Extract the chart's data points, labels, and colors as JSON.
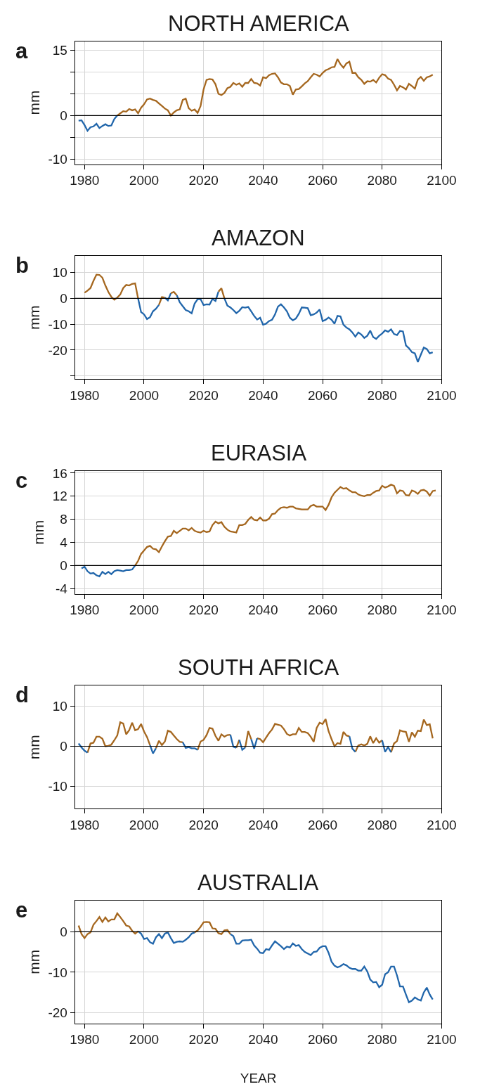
{
  "chart_data": [
    {
      "type": "line",
      "title": "NORTH AMERICA",
      "ylabel": "mm",
      "annotations": [
        "a"
      ],
      "grid": true,
      "xlim": [
        1976.8,
        2100
      ],
      "xticks": [
        1980,
        2000,
        2020,
        2040,
        2060,
        2080,
        2100
      ],
      "ylim": [
        -11.2,
        17.1
      ],
      "yticks": [
        -10,
        {
          "value": -5,
          "label": null
        },
        0,
        {
          "value": 5,
          "label": null
        },
        {
          "value": 10,
          "label": null
        },
        15
      ],
      "ref_lines": [
        {
          "axis": "y",
          "value": 0,
          "color": "#000000"
        }
      ],
      "series": [
        {
          "color": "#a5671f",
          "x": [
            1991,
            1992,
            1993,
            1994,
            1995,
            1996,
            1997,
            1998,
            1999,
            2000,
            2001,
            2002,
            2003,
            2004,
            2005,
            2006,
            2007,
            2008,
            2009,
            2010,
            2011,
            2012,
            2013,
            2014,
            2015,
            2016,
            2017,
            2018,
            2019,
            2020,
            2021,
            2022,
            2023,
            2024,
            2025,
            2026,
            2027,
            2028,
            2029,
            2030,
            2031,
            2032,
            2033,
            2034,
            2035,
            2036,
            2037,
            2038,
            2039,
            2040,
            2041,
            2042,
            2043,
            2044,
            2045,
            2046,
            2047,
            2048,
            2049,
            2050,
            2051,
            2052,
            2053,
            2054,
            2055,
            2056,
            2057,
            2058,
            2059,
            2060,
            2061,
            2062,
            2063,
            2064,
            2065,
            2066,
            2067,
            2068,
            2069,
            2070,
            2071,
            2072,
            2073,
            2074,
            2075,
            2076,
            2077,
            2078,
            2079,
            2080,
            2081,
            2082,
            2083,
            2084,
            2085,
            2086,
            2087,
            2088,
            2089,
            2090,
            2091,
            2092,
            2093,
            2094,
            2095,
            2096,
            2097
          ],
          "values": [
            0,
            0.5,
            1.0,
            0.9,
            1.5,
            1.2,
            1.4,
            0.5,
            1.8,
            2.6,
            3.7,
            3.9,
            3.6,
            3.4,
            2.8,
            2.2,
            1.6,
            1.2,
            0,
            0.7,
            1.2,
            1.4,
            3.6,
            3.9,
            1.7,
            1.1,
            1.4,
            0.6,
            2.2,
            6.0,
            8.2,
            8.4,
            8.3,
            7.2,
            5.0,
            4.7,
            5.2,
            6.3,
            6.6,
            7.5,
            7.1,
            7.4,
            6.6,
            7.5,
            7.5,
            8.4,
            7.5,
            7.4,
            6.9,
            8.8,
            8.6,
            9.3,
            9.6,
            9.7,
            8.8,
            7.6,
            7.2,
            7.2,
            6.8,
            4.8,
            6.0,
            6.1,
            6.7,
            7.4,
            7.9,
            8.8,
            9.6,
            9.4,
            9.0,
            9.8,
            10.4,
            10.7,
            11.1,
            11.2,
            13.0,
            11.8,
            11.0,
            12.0,
            12.4,
            9.8,
            9.8,
            8.8,
            8.2,
            7.3,
            7.9,
            7.8,
            8.2,
            7.6,
            8.7,
            9.5,
            9.3,
            8.5,
            8.2,
            7.1,
            5.8,
            6.8,
            6.5,
            6.0,
            7.3,
            6.8,
            6.2,
            8.3,
            8.9,
            8.0,
            8.8,
            9.0,
            9.4
          ]
        },
        {
          "color": "#2166ab",
          "x": [
            1978,
            1979,
            1980,
            1981,
            1982,
            1983,
            1984,
            1985,
            1986,
            1987,
            1988,
            1989,
            1990,
            1991
          ],
          "values": [
            -1.2,
            -1.1,
            -2.2,
            -3.5,
            -2.7,
            -2.5,
            -1.9,
            -2.9,
            -2.4,
            -2.0,
            -2.4,
            -2.3,
            -0.8,
            0
          ]
        }
      ]
    },
    {
      "type": "line",
      "title": "AMAZON",
      "ylabel": "mm",
      "annotations": [
        "b"
      ],
      "grid": true,
      "xlim": [
        1976.8,
        2100
      ],
      "xticks": [
        1980,
        2000,
        2020,
        2040,
        2060,
        2080,
        2100
      ],
      "ylim": [
        -31.2,
        16.4
      ],
      "yticks": [
        {
          "value": -30,
          "label": null
        },
        -20,
        -10,
        0,
        10
      ],
      "ref_lines": [
        {
          "axis": "y",
          "value": 0,
          "color": "#000000"
        }
      ],
      "series": [
        {
          "color": "#2166ab",
          "x": [
            1998,
            1999,
            2000,
            2001,
            2002,
            2003,
            2004,
            2005,
            2006,
            2007,
            2008,
            2009,
            2010,
            2011,
            2012,
            2013,
            2014,
            2015,
            2016,
            2017,
            2018,
            2019,
            2020,
            2021,
            2022,
            2023,
            2024,
            2025,
            2026,
            2027,
            2028,
            2029,
            2030,
            2031,
            2032,
            2033,
            2034,
            2035,
            2036,
            2037,
            2038,
            2039,
            2040,
            2041,
            2042,
            2043,
            2044,
            2045,
            2046,
            2047,
            2048,
            2049,
            2050,
            2051,
            2052,
            2053,
            2054,
            2055,
            2056,
            2057,
            2058,
            2059,
            2060,
            2061,
            2062,
            2063,
            2064,
            2065,
            2066,
            2067,
            2068,
            2069,
            2070,
            2071,
            2072,
            2073,
            2074,
            2075,
            2076,
            2077,
            2078,
            2079,
            2080,
            2081,
            2082,
            2083,
            2084,
            2085,
            2086,
            2087,
            2088,
            2089,
            2090,
            2091,
            2092,
            2093,
            2094,
            2095,
            2096,
            2097
          ],
          "values": [
            0,
            -5.3,
            -6.2,
            -8.0,
            -7.3,
            -5.0,
            -4.0,
            -2.5,
            null,
            0.3,
            -0.8,
            2.0,
            null,
            1.2,
            -1.5,
            -3.0,
            -4.5,
            -5.0,
            -5.8,
            -2.0,
            -0.3,
            -0.3,
            -2.6,
            -2.3,
            -2.4,
            -0.2,
            -1.0,
            2.6,
            null,
            0,
            -2.8,
            -3.5,
            -4.5,
            -5.7,
            -4.8,
            -3.4,
            -3.6,
            -3.3,
            -5.0,
            -6.8,
            -8.2,
            -7.5,
            -10.2,
            -9.8,
            -8.8,
            -8.3,
            -6.2,
            -3.2,
            -2.3,
            -3.5,
            -5.0,
            -7.5,
            -8.5,
            -7.8,
            -6.0,
            -3.5,
            -3.6,
            -3.8,
            -6.5,
            -6.2,
            -5.5,
            -4.3,
            -8.8,
            -8.3,
            -7.4,
            -8.3,
            -9.8,
            -6.8,
            -7.0,
            -10.2,
            -11.3,
            -12.0,
            -13.2,
            -14.8,
            -13.2,
            -14.0,
            -15.3,
            -14.5,
            -12.5,
            -15.0,
            -15.7,
            -14.5,
            -13.6,
            -12.4,
            -12.9,
            -12.0,
            -13.8,
            -14.2,
            -12.6,
            -12.8,
            -18.2,
            -19.3,
            -20.8,
            -21.3,
            -24.6,
            -21.8,
            -19.0,
            -19.6,
            -21.3,
            -20.9
          ]
        },
        {
          "color": "#a5671f",
          "x": [
            1980,
            1981,
            1982,
            1983,
            1984,
            1985,
            1986,
            1987,
            1988,
            1989,
            1990,
            1991,
            1992,
            1993,
            1994,
            1995,
            1996,
            1997,
            1998,
            2002,
            2005,
            2006,
            2007,
            2008,
            2009,
            2010,
            2011,
            2018,
            2025,
            2026,
            2027
          ],
          "values": [
            2.2,
            3.0,
            4.0,
            6.8,
            9.2,
            9.1,
            8.0,
            5.0,
            2.5,
            0.6,
            -0.5,
            0.3,
            1.5,
            4.0,
            5.2,
            5.0,
            5.6,
            5.8,
            0,
            null,
            -2.5,
            0.5,
            0.3,
            null,
            2.0,
            2.5,
            1.2,
            null,
            2.6,
            3.9,
            0
          ]
        }
      ]
    },
    {
      "type": "line",
      "title": "EURASIA",
      "ylabel": "mm",
      "annotations": [
        "c"
      ],
      "grid": true,
      "xlim": [
        1976.8,
        2100
      ],
      "xticks": [
        1980,
        2000,
        2020,
        2040,
        2060,
        2080,
        2100
      ],
      "ylim": [
        -4.9,
        16.4
      ],
      "yticks": [
        -4,
        0,
        4,
        8,
        12,
        16
      ],
      "ref_lines": [
        {
          "axis": "y",
          "value": 0,
          "color": "#000000"
        }
      ],
      "series": [
        {
          "color": "#a5671f",
          "x": [
            1997,
            1998,
            1999,
            2000,
            2001,
            2002,
            2003,
            2004,
            2005,
            2006,
            2007,
            2008,
            2009,
            2010,
            2011,
            2012,
            2013,
            2014,
            2015,
            2016,
            2017,
            2018,
            2019,
            2020,
            2021,
            2022,
            2023,
            2024,
            2025,
            2026,
            2027,
            2028,
            2029,
            2030,
            2031,
            2032,
            2033,
            2034,
            2035,
            2036,
            2037,
            2038,
            2039,
            2040,
            2041,
            2042,
            2043,
            2044,
            2045,
            2046,
            2047,
            2048,
            2049,
            2050,
            2051,
            2052,
            2053,
            2054,
            2055,
            2056,
            2057,
            2058,
            2059,
            2060,
            2061,
            2062,
            2063,
            2064,
            2065,
            2066,
            2067,
            2068,
            2069,
            2070,
            2071,
            2072,
            2073,
            2074,
            2075,
            2076,
            2077,
            2078,
            2079,
            2080,
            2081,
            2082,
            2083,
            2084,
            2085,
            2086,
            2087,
            2088,
            2089,
            2090,
            2091,
            2092,
            2093,
            2094,
            2095,
            2096,
            2097,
            2098
          ],
          "values": [
            0,
            0.8,
            2.0,
            2.6,
            3.2,
            3.4,
            2.9,
            2.8,
            2.3,
            3.3,
            4.2,
            5.0,
            5.1,
            6.0,
            5.6,
            6.0,
            6.4,
            6.4,
            6.1,
            6.5,
            6.0,
            5.8,
            5.7,
            6.0,
            5.8,
            5.9,
            7.0,
            7.6,
            7.3,
            7.5,
            6.7,
            6.2,
            5.9,
            5.8,
            5.7,
            7.0,
            7.0,
            7.2,
            7.9,
            8.4,
            7.9,
            7.8,
            8.3,
            7.8,
            7.8,
            8.1,
            8.9,
            9.0,
            9.6,
            10.0,
            10.1,
            10.0,
            10.2,
            10.2,
            9.9,
            9.8,
            9.7,
            9.7,
            9.7,
            10.3,
            10.5,
            10.2,
            10.2,
            10.2,
            9.6,
            10.5,
            11.8,
            12.6,
            13.1,
            13.6,
            13.3,
            13.4,
            13.0,
            12.7,
            12.7,
            12.3,
            12.1,
            12.0,
            12.2,
            12.2,
            12.6,
            12.9,
            13.0,
            13.8,
            13.5,
            13.7,
            14.0,
            13.8,
            12.5,
            13.0,
            12.9,
            12.2,
            12.1,
            13.0,
            12.8,
            12.4,
            13.0,
            13.1,
            12.8,
            12.1,
            12.9,
            13.0
          ]
        },
        {
          "color": "#2166ab",
          "x": [
            1979,
            1980,
            1981,
            1982,
            1983,
            1984,
            1985,
            1986,
            1987,
            1988,
            1989,
            1990,
            1991,
            1992,
            1993,
            1994,
            1995,
            1996,
            1997
          ],
          "values": [
            -0.5,
            -0.2,
            -1.0,
            -1.4,
            -1.3,
            -1.7,
            -1.9,
            -1.1,
            -1.5,
            -1.1,
            -1.5,
            -1.0,
            -0.8,
            -0.9,
            -1.0,
            -0.8,
            -0.8,
            -0.7,
            0
          ]
        }
      ]
    },
    {
      "type": "line",
      "title": "SOUTH AFRICA",
      "ylabel": "mm",
      "annotations": [
        "d"
      ],
      "grid": true,
      "xlim": [
        1976.8,
        2100
      ],
      "xticks": [
        1980,
        2000,
        2020,
        2040,
        2060,
        2080,
        2100
      ],
      "ylim": [
        -15.6,
        15.2
      ],
      "yticks": [
        -10,
        0,
        10
      ],
      "ref_lines": [
        {
          "axis": "y",
          "value": 0,
          "color": "#000000"
        }
      ],
      "series": [
        {
          "color": "#a5671f",
          "x": [
            1981,
            1982,
            1983,
            1984,
            1985,
            1986,
            1987,
            1988,
            1989,
            1990,
            1991,
            1992,
            1993,
            1994,
            1995,
            1996,
            1997,
            1998,
            1999,
            2000,
            2001,
            2002,
            2003,
            2004,
            2005,
            2006,
            2007,
            2008,
            2009,
            2010,
            2011,
            2012,
            2013,
            2014,
            2015,
            2016,
            2017,
            2018,
            2019,
            2020,
            2021,
            2022,
            2023,
            2024,
            2025,
            2026,
            2027,
            2028,
            2029,
            2030,
            2031,
            2032,
            2033,
            2034,
            2035,
            2036,
            2037,
            2038,
            2039,
            2040,
            2041,
            2042,
            2043,
            2044,
            2045,
            2046,
            2047,
            2048,
            2049,
            2050,
            2051,
            2052,
            2053,
            2054,
            2055,
            2056,
            2057,
            2058,
            2059,
            2060,
            2061,
            2062,
            2063,
            2064,
            2065,
            2066,
            2067,
            2068,
            2069,
            2070,
            2071,
            2072,
            2073,
            2074,
            2075,
            2076,
            2077,
            2078,
            2079,
            2080,
            2081,
            2082,
            2083,
            2084,
            2085,
            2086,
            2087,
            2088,
            2089,
            2090,
            2091,
            2092,
            2093,
            2094,
            2095,
            2096,
            2097
          ],
          "values": [
            -1.6,
            0.7,
            0.9,
            2.4,
            2.4,
            1.9,
            0.0,
            0.1,
            0.4,
            1.5,
            2.7,
            6.0,
            5.7,
            3.0,
            4.0,
            5.9,
            4.0,
            4.3,
            5.6,
            3.7,
            2.3,
            0.3,
            null,
            -0.5,
            1.4,
            0.3,
            1.2,
            3.9,
            3.6,
            2.7,
            1.8,
            1.1,
            1.0,
            null,
            null,
            null,
            null,
            -0.9,
            1.2,
            1.6,
            2.8,
            4.6,
            4.4,
            2.6,
            1.4,
            3.0,
            2.4,
            2.8,
            2.9,
            null,
            -0.4,
            1.6,
            null,
            -0.3,
            3.8,
            1.8,
            null,
            2.0,
            1.8,
            1.0,
            2.2,
            3.3,
            4.2,
            5.6,
            5.4,
            5.2,
            4.3,
            3.1,
            2.7,
            3.0,
            3.0,
            4.6,
            3.6,
            3.6,
            3.3,
            2.4,
            1.1,
            4.6,
            5.9,
            5.6,
            6.8,
            3.8,
            1.8,
            0.0,
            0.8,
            0.6,
            3.6,
            2.7,
            2.5,
            null,
            -1.4,
            0.2,
            0.5,
            0.2,
            0.6,
            2.5,
            0.8,
            2.0,
            0.9,
            1.5,
            null,
            null,
            -1.5,
            0.7,
            1.3,
            4.0,
            3.7,
            3.6,
            1.1,
            3.5,
            2.4,
            3.9,
            3.8,
            6.7,
            5.3,
            5.5,
            2.0
          ]
        },
        {
          "color": "#2166ab",
          "x": [
            1978,
            1979,
            1980,
            1981,
            1992,
            2002,
            2003,
            2004,
            2008,
            2013,
            2014,
            2015,
            2016,
            2017,
            2018,
            2024,
            2029,
            2030,
            2031,
            2031.5,
            2032,
            2033,
            2034,
            2035,
            2036,
            2037,
            2038,
            2050,
            2069,
            2070,
            2071,
            2075,
            2080,
            2081,
            2082,
            2083
          ],
          "values": [
            0.7,
            -0.3,
            -1.1,
            -1.6,
            null,
            0.3,
            -1.8,
            -0.5,
            null,
            1.0,
            -0.4,
            -0.2,
            -0.5,
            -0.5,
            -0.9,
            null,
            2.9,
            -0.1,
            -0.4,
            null,
            1.6,
            -0.9,
            -0.3,
            null,
            1.8,
            -0.6,
            2.0,
            null,
            2.5,
            -0.6,
            -1.4,
            null,
            1.5,
            -1.4,
            -0.2,
            -1.5
          ]
        }
      ]
    },
    {
      "type": "line",
      "title": "AUSTRALIA",
      "ylabel": "mm",
      "xlabel": "YEAR",
      "annotations": [
        "e"
      ],
      "grid": true,
      "xlim": [
        1976.8,
        2100
      ],
      "xticks": [
        1980,
        2000,
        2020,
        2040,
        2060,
        2080,
        2100
      ],
      "ylim": [
        -22.6,
        7.7
      ],
      "yticks": [
        -20,
        -10,
        0
      ],
      "ref_lines": [
        {
          "axis": "y",
          "value": 0,
          "color": "#000000"
        }
      ],
      "series": [
        {
          "color": "#2166ab",
          "x": [
            1998,
            1999,
            2000,
            2001,
            2002,
            2003,
            2004,
            2005,
            2006,
            2007,
            2008,
            2009,
            2010,
            2011,
            2012,
            2013,
            2014,
            2015,
            2016,
            2017,
            2018,
            2019,
            2020,
            2021,
            2022,
            2023,
            2024,
            2025,
            2026,
            2027,
            2028,
            2029,
            2030,
            2031,
            2032,
            2033,
            2034,
            2035,
            2036,
            2037,
            2038,
            2039,
            2040,
            2041,
            2042,
            2043,
            2044,
            2045,
            2046,
            2047,
            2048,
            2049,
            2050,
            2051,
            2052,
            2053,
            2054,
            2055,
            2056,
            2057,
            2058,
            2059,
            2060,
            2061,
            2062,
            2063,
            2064,
            2065,
            2066,
            2067,
            2068,
            2069,
            2070,
            2071,
            2072,
            2073,
            2074,
            2075,
            2076,
            2077,
            2078,
            2079,
            2080,
            2081,
            2082,
            2083,
            2084,
            2085,
            2086,
            2087,
            2088,
            2089,
            2090,
            2091,
            2092,
            2093,
            2094,
            2095,
            2096,
            2097
          ],
          "values": [
            0.1,
            -0.5,
            -1.8,
            -1.6,
            -2.6,
            -3.0,
            -1.4,
            -0.6,
            -1.6,
            -0.5,
            -0.2,
            -1.6,
            -2.8,
            -2.5,
            -2.4,
            -2.5,
            -2.0,
            -1.4,
            -0.5,
            -0.2,
            null,
            null,
            null,
            null,
            null,
            null,
            null,
            null,
            null,
            null,
            null,
            -0.6,
            -1.1,
            -3.0,
            -3.0,
            -2.2,
            -2.1,
            -2.1,
            -2.0,
            -3.4,
            -4.2,
            -5.2,
            -5.3,
            -4.3,
            -4.5,
            -3.4,
            -2.4,
            -3.0,
            -3.6,
            -4.3,
            -3.7,
            -3.9,
            -2.9,
            -3.5,
            -3.3,
            -4.3,
            -5.0,
            -5.4,
            -5.8,
            -5.0,
            -4.9,
            -4.0,
            -3.6,
            -3.6,
            -5.2,
            -7.4,
            -8.4,
            -8.8,
            -8.5,
            -8.0,
            -8.3,
            -8.9,
            -9.2,
            -9.2,
            -9.6,
            -9.6,
            -8.6,
            -9.8,
            -11.8,
            -12.5,
            -12.4,
            -13.7,
            -13.1,
            -10.5,
            -10.0,
            -8.6,
            -8.6,
            -10.8,
            -13.5,
            -13.5,
            -15.5,
            -17.4,
            -17.0,
            -16.2,
            -16.7,
            -17.0,
            -15.0,
            -13.8,
            -15.5,
            -16.7
          ]
        },
        {
          "color": "#a5671f",
          "x": [
            1978,
            1979,
            1980,
            1981,
            1982,
            1983,
            1984,
            1985,
            1986,
            1987,
            1988,
            1989,
            1990,
            1991,
            1992,
            1993,
            1994,
            1995,
            1996,
            1997,
            1998,
            2008,
            2017,
            2018,
            2019,
            2020,
            2021,
            2022,
            2023,
            2024,
            2025,
            2026,
            2027,
            2028,
            2029
          ],
          "values": [
            1.5,
            -0.6,
            -1.6,
            -0.6,
            -0.2,
            1.7,
            2.6,
            3.6,
            2.4,
            3.5,
            2.5,
            3.0,
            3.0,
            4.5,
            3.6,
            2.6,
            1.5,
            1.3,
            0.2,
            -0.5,
            0.1,
            null,
            -0.2,
            0.3,
            1.2,
            2.3,
            2.4,
            2.3,
            0.8,
            0.7,
            -0.4,
            -0.6,
            0.3,
            0.4,
            -0.6
          ]
        }
      ]
    }
  ]
}
